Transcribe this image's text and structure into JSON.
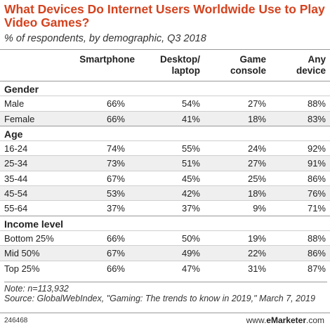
{
  "chart_data": {
    "type": "table",
    "title": "What Devices Do Internet Users Worldwide Use to Play Video Games?",
    "subtitle": "% of respondents, by demographic, Q3 2018",
    "columns": [
      "Smartphone",
      "Desktop/ laptop",
      "Game console",
      "Any device"
    ],
    "groups": [
      {
        "name": "Gender",
        "rows": [
          {
            "label": "Male",
            "values": [
              "66%",
              "54%",
              "27%",
              "88%"
            ]
          },
          {
            "label": "Female",
            "values": [
              "66%",
              "41%",
              "18%",
              "83%"
            ]
          }
        ]
      },
      {
        "name": "Age",
        "rows": [
          {
            "label": "16-24",
            "values": [
              "74%",
              "55%",
              "24%",
              "92%"
            ]
          },
          {
            "label": "25-34",
            "values": [
              "73%",
              "51%",
              "27%",
              "91%"
            ]
          },
          {
            "label": "35-44",
            "values": [
              "67%",
              "45%",
              "25%",
              "86%"
            ]
          },
          {
            "label": "45-54",
            "values": [
              "53%",
              "42%",
              "18%",
              "76%"
            ]
          },
          {
            "label": "55-64",
            "values": [
              "37%",
              "37%",
              "9%",
              "71%"
            ]
          }
        ]
      },
      {
        "name": "Income level",
        "rows": [
          {
            "label": "Bottom 25%",
            "values": [
              "66%",
              "50%",
              "19%",
              "88%"
            ]
          },
          {
            "label": "Mid 50%",
            "values": [
              "67%",
              "49%",
              "22%",
              "86%"
            ]
          },
          {
            "label": "Top 25%",
            "values": [
              "66%",
              "47%",
              "31%",
              "87%"
            ]
          }
        ]
      }
    ],
    "note": "Note: n=113,932",
    "source": "Source: GlobalWebIndex, \"Gaming: The trends to know in 2019,\" March 7, 2019"
  },
  "footer": {
    "chart_id": "246468",
    "brand_prefix": "www.",
    "brand_name": "eMarketer",
    "brand_suffix": ".com"
  },
  "colors": {
    "title": "#d4421e",
    "alt_row": "#efefef"
  }
}
